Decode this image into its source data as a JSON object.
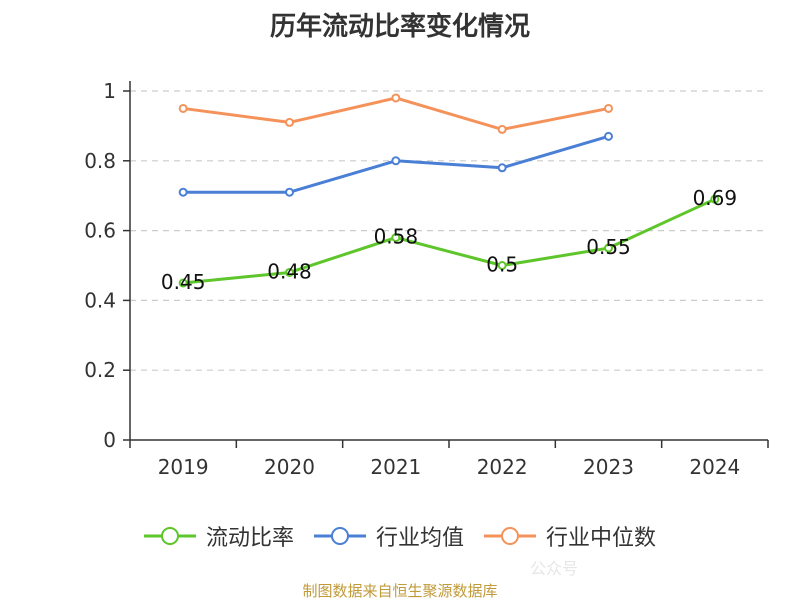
{
  "chart_data": {
    "type": "line",
    "title": "历年流动比率变化情况",
    "categories": [
      "2019",
      "2020",
      "2021",
      "2022",
      "2023",
      "2024"
    ],
    "ylim": [
      0,
      1
    ],
    "yticks": [
      0,
      0.2,
      0.4,
      0.6,
      0.8,
      1
    ],
    "ytick_labels": [
      "0",
      "0.2",
      "0.4",
      "0.6",
      "0.8",
      "1"
    ],
    "grid": true,
    "legend_position": "bottom",
    "series": [
      {
        "name": "流动比率",
        "color": "#5ec52a",
        "values": [
          0.45,
          0.48,
          0.58,
          0.5,
          0.55,
          0.69
        ],
        "labels": [
          "0.45",
          "0.48",
          "0.58",
          "0.5",
          "0.55",
          "0.69"
        ]
      },
      {
        "name": "行业均值",
        "color": "#4a7fd6",
        "values": [
          0.71,
          0.71,
          0.8,
          0.78,
          0.87,
          null
        ]
      },
      {
        "name": "行业中位数",
        "color": "#f5925a",
        "values": [
          0.95,
          0.91,
          0.98,
          0.89,
          0.95,
          null
        ]
      }
    ]
  },
  "source": {
    "text": "制图数据来自恒生聚源数据库",
    "color": "#c19a3a"
  },
  "watermark": "公众号"
}
